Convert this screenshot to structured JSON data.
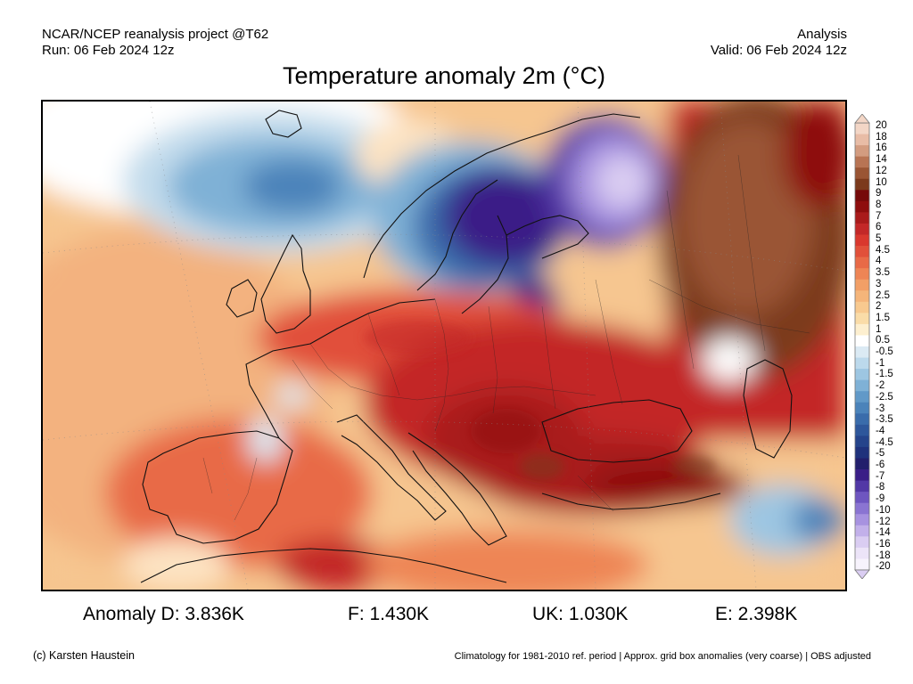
{
  "header": {
    "source": "NCAR/NCEP reanalysis project @T62",
    "run": "Run: 06 Feb 2024 12z",
    "type": "Analysis",
    "valid": "Valid: 06 Feb 2024 12z"
  },
  "title": "Temperature anomaly 2m (°C)",
  "map": {
    "region": "Europe",
    "variable": "2m temperature anomaly"
  },
  "colorbar": {
    "labels": [
      "20",
      "18",
      "16",
      "14",
      "12",
      "10",
      "9",
      "8",
      "7",
      "6",
      "5",
      "4.5",
      "4",
      "3.5",
      "3",
      "2.5",
      "2",
      "1.5",
      "1",
      "0.5",
      "-0.5",
      "-1",
      "-1.5",
      "-2",
      "-2.5",
      "-3",
      "-3.5",
      "-4",
      "-4.5",
      "-5",
      "-6",
      "-7",
      "-8",
      "-9",
      "-10",
      "-12",
      "-14",
      "-16",
      "-18",
      "-20"
    ],
    "colors": [
      "#f3d6c6",
      "#e8bca6",
      "#d39c80",
      "#b87454",
      "#9a5534",
      "#7c3a1c",
      "#760a0a",
      "#8e0e0e",
      "#a91b1b",
      "#c32828",
      "#d9382e",
      "#e1503a",
      "#e86a47",
      "#ee8555",
      "#f29f66",
      "#f5b57a",
      "#f8c98f",
      "#fadca8",
      "#fdefcf",
      "#ffffff",
      "#dbeaf4",
      "#bcd9ec",
      "#9dc6e2",
      "#7fb1d6",
      "#6199c8",
      "#4b83ba",
      "#3a6cab",
      "#2e579b",
      "#25448b",
      "#1f327c",
      "#221f6c",
      "#3a1e87",
      "#5238a6",
      "#6e56c0",
      "#8a74d2",
      "#a792e0",
      "#c2b0ea",
      "#dacdf2",
      "#ece4f8",
      "#f7f3fc"
    ]
  },
  "stats": [
    {
      "label": "Anomaly D: 3.836K"
    },
    {
      "label": "F: 1.430K"
    },
    {
      "label": "UK: 1.030K"
    },
    {
      "label": "E: 2.398K"
    }
  ],
  "footer": {
    "credit": "(c) Karsten Haustein",
    "note": "Climatology for 1981-2010 ref. period | Approx. grid box anomalies (very coarse) | OBS adjusted"
  }
}
